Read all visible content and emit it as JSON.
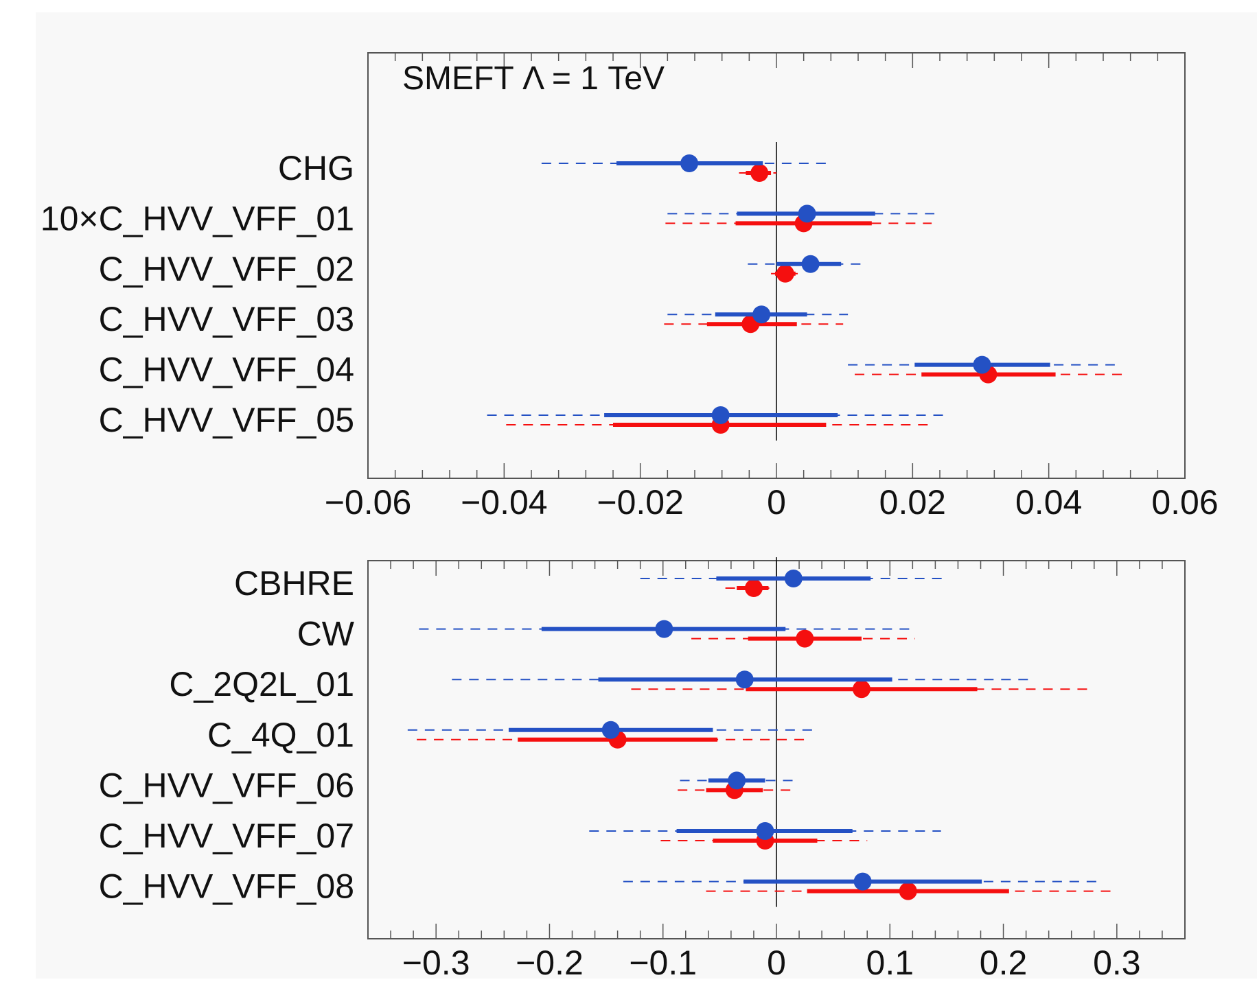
{
  "chart_data": [
    {
      "type": "forest",
      "title": "SMEFT Λ = 1 TeV",
      "xlim": [
        -0.06,
        0.06
      ],
      "xticks": [
        -0.06,
        -0.04,
        -0.02,
        0,
        0.02,
        0.04,
        0.06
      ],
      "xtick_labels": [
        "−0.06",
        "−0.04",
        "−0.02",
        "0",
        "0.02",
        "0.04",
        "0.06"
      ],
      "rows": [
        {
          "label": "CHG",
          "blue": {
            "center": -0.0128,
            "sigma1": [
              -0.0235,
              -0.002
            ],
            "sigma2": [
              -0.0345,
              0.008
            ]
          },
          "red": {
            "center": -0.0025,
            "sigma1": [
              -0.0045,
              -0.0008
            ],
            "sigma2": [
              -0.0055,
              0.0
            ]
          }
        },
        {
          "label": "10×C_HVV_VFF_01",
          "blue": {
            "center": 0.0045,
            "sigma1": [
              -0.0058,
              0.0145
            ],
            "sigma2": [
              -0.016,
              0.0232
            ]
          },
          "red": {
            "center": 0.004,
            "sigma1": [
              -0.006,
              0.014
            ],
            "sigma2": [
              -0.0163,
              0.0228
            ]
          }
        },
        {
          "label": "C_HVV_VFF_02",
          "blue": {
            "center": 0.005,
            "sigma1": [
              0.0,
              0.0095
            ],
            "sigma2": [
              -0.0042,
              0.0128
            ]
          },
          "red": {
            "center": 0.0013,
            "sigma1": [
              -0.0002,
              0.0028
            ],
            "sigma2": [
              -0.0008,
              0.0035
            ]
          }
        },
        {
          "label": "C_HVV_VFF_03",
          "blue": {
            "center": -0.0022,
            "sigma1": [
              -0.009,
              0.0045
            ],
            "sigma2": [
              -0.016,
              0.0105
            ]
          },
          "red": {
            "center": -0.0038,
            "sigma1": [
              -0.0102,
              0.003
            ],
            "sigma2": [
              -0.0165,
              0.0098
            ]
          }
        },
        {
          "label": "C_HVV_VFF_04",
          "blue": {
            "center": 0.0302,
            "sigma1": [
              0.0203,
              0.0402
            ],
            "sigma2": [
              0.0105,
              0.0497
            ]
          },
          "red": {
            "center": 0.0311,
            "sigma1": [
              0.0213,
              0.041
            ],
            "sigma2": [
              0.0115,
              0.0508
            ]
          }
        },
        {
          "label": "C_HVV_VFF_05",
          "blue": {
            "center": -0.0082,
            "sigma1": [
              -0.0253,
              0.009
            ],
            "sigma2": [
              -0.0425,
              0.025
            ]
          },
          "red": {
            "center": -0.0082,
            "sigma1": [
              -0.024,
              0.0073
            ],
            "sigma2": [
              -0.0397,
              0.023
            ]
          }
        }
      ]
    },
    {
      "type": "forest",
      "title": "",
      "xlim": [
        -0.36,
        0.36
      ],
      "xticks": [
        -0.3,
        -0.2,
        -0.1,
        0,
        0.1,
        0.2,
        0.3
      ],
      "xtick_labels": [
        "−0.3",
        "−0.2",
        "−0.1",
        "0",
        "0.1",
        "0.2",
        "0.3"
      ],
      "rows": [
        {
          "label": "CBHRE",
          "blue": {
            "center": 0.015,
            "sigma1": [
              -0.053,
              0.083
            ],
            "sigma2": [
              -0.12,
              0.15
            ]
          },
          "red": {
            "center": -0.02,
            "sigma1": [
              -0.035,
              -0.007
            ],
            "sigma2": [
              -0.045,
              -0.002
            ]
          }
        },
        {
          "label": "CW",
          "blue": {
            "center": -0.099,
            "sigma1": [
              -0.207,
              0.008
            ],
            "sigma2": [
              -0.315,
              0.117
            ]
          },
          "red": {
            "center": 0.025,
            "sigma1": [
              -0.025,
              0.075
            ],
            "sigma2": [
              -0.075,
              0.122
            ]
          }
        },
        {
          "label": "C_2Q2L_01",
          "blue": {
            "center": -0.028,
            "sigma1": [
              -0.157,
              0.102
            ],
            "sigma2": [
              -0.286,
              0.228
            ]
          },
          "red": {
            "center": 0.075,
            "sigma1": [
              -0.027,
              0.177
            ],
            "sigma2": [
              -0.128,
              0.275
            ]
          }
        },
        {
          "label": "C_4Q_01",
          "blue": {
            "center": -0.146,
            "sigma1": [
              -0.236,
              -0.056
            ],
            "sigma2": [
              -0.325,
              0.035
            ]
          },
          "red": {
            "center": -0.14,
            "sigma1": [
              -0.228,
              -0.052
            ],
            "sigma2": [
              -0.317,
              0.03
            ]
          }
        },
        {
          "label": "C_HVV_VFF_06",
          "blue": {
            "center": -0.035,
            "sigma1": [
              -0.06,
              -0.01
            ],
            "sigma2": [
              -0.085,
              0.015
            ]
          },
          "red": {
            "center": -0.037,
            "sigma1": [
              -0.062,
              -0.012
            ],
            "sigma2": [
              -0.087,
              0.013
            ]
          }
        },
        {
          "label": "C_HVV_VFF_07",
          "blue": {
            "center": -0.01,
            "sigma1": [
              -0.088,
              0.067
            ],
            "sigma2": [
              -0.165,
              0.145
            ]
          },
          "red": {
            "center": -0.01,
            "sigma1": [
              -0.056,
              0.036
            ],
            "sigma2": [
              -0.102,
              0.08
            ]
          }
        },
        {
          "label": "C_HVV_VFF_08",
          "blue": {
            "center": 0.076,
            "sigma1": [
              -0.029,
              0.181
            ],
            "sigma2": [
              -0.135,
              0.287
            ]
          },
          "red": {
            "center": 0.116,
            "sigma1": [
              0.027,
              0.205
            ],
            "sigma2": [
              -0.062,
              0.295
            ]
          }
        }
      ]
    }
  ],
  "colors": {
    "blue": "#2451c4",
    "red": "#f50f0f",
    "axis": "#555555",
    "zero_line": "#000000",
    "panel_bg": "#f8f8f8"
  }
}
